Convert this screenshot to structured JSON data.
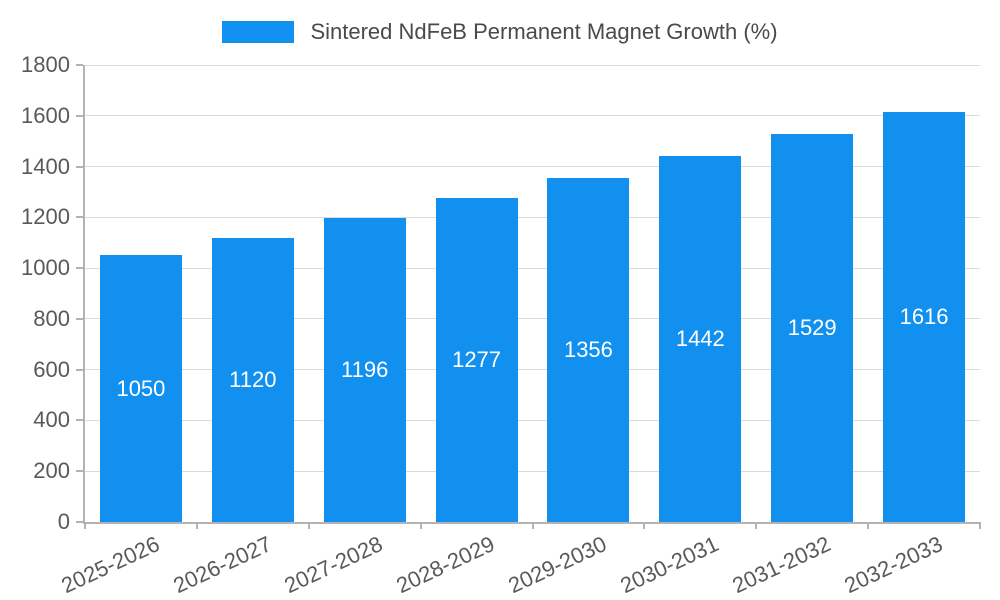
{
  "legend": {
    "label": "Sintered NdFeB Permanent Magnet Growth (%)",
    "swatch_color": "#1190f0"
  },
  "chart_data": {
    "type": "bar",
    "title": "",
    "series_name": "Sintered NdFeB Permanent Magnet Growth (%)",
    "categories": [
      "2025-2026",
      "2026-2027",
      "2027-2028",
      "2028-2029",
      "2029-2030",
      "2030-2031",
      "2031-2032",
      "2032-2033"
    ],
    "values": [
      1050,
      1120,
      1196,
      1277,
      1356,
      1442,
      1529,
      1616
    ],
    "yticks": [
      0,
      200,
      400,
      600,
      800,
      1000,
      1200,
      1400,
      1600,
      1800
    ],
    "ylim": [
      0,
      1800
    ],
    "xlabel": "",
    "ylabel": "",
    "grid": true,
    "legend_position": "top",
    "bar_labels_inside": true,
    "colors": {
      "bar": "#1190f0",
      "bar_label": "#ffffff",
      "axis_text": "#595959",
      "legend_text": "#4a4a4a",
      "grid_line": "#dadada",
      "axis_line": "#b3b3b3",
      "background": "#ffffff"
    }
  }
}
